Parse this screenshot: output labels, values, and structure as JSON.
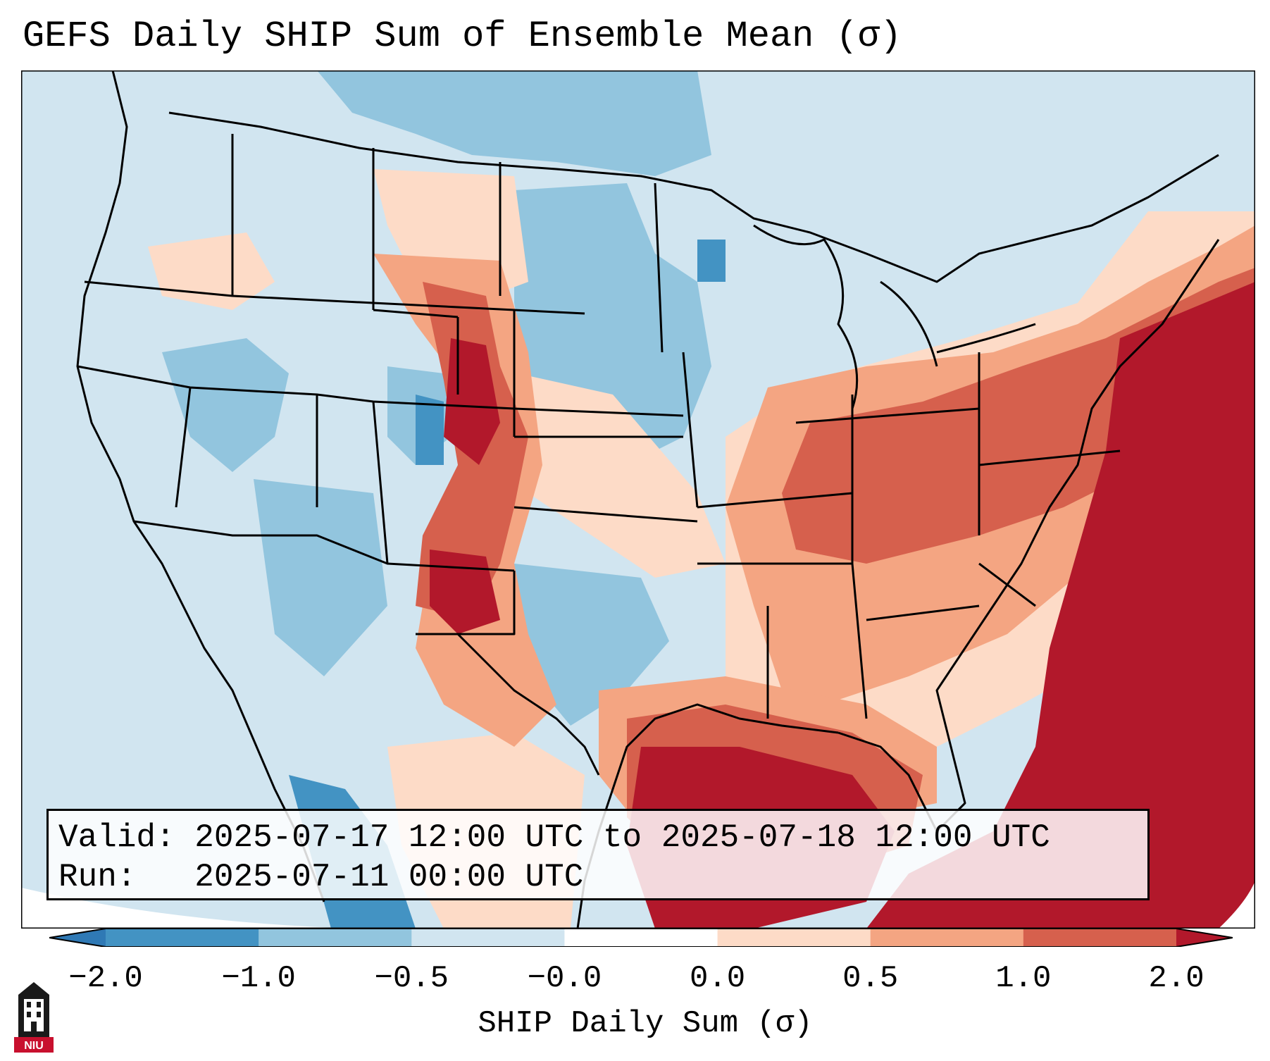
{
  "title": "GEFS Daily SHIP Sum of Ensemble Mean (σ)",
  "info": {
    "valid_label": "Valid:",
    "valid_value": "2025-07-17 12:00 UTC to 2025-07-18 12:00 UTC",
    "run_label": "Run:",
    "run_value": "2025-07-11 00:00 UTC"
  },
  "colorbar": {
    "label": "SHIP Daily Sum (σ)",
    "ticks": [
      "−2.0",
      "−1.0",
      "−0.5",
      "−0.0",
      "0.0",
      "0.5",
      "1.0",
      "2.0"
    ],
    "colors": [
      "#2f79b5",
      "#4393c3",
      "#92c5de",
      "#d1e5f0",
      "#fddbc7",
      "#f4a582",
      "#d6604d",
      "#b2182b"
    ],
    "extend": "both"
  },
  "logo": {
    "text": "NIU",
    "icon": "university-tower-icon"
  },
  "map": {
    "region": "United States",
    "field": "GEFS ensemble mean SHIP daily sum",
    "background_color": "#d1e5f0"
  }
}
